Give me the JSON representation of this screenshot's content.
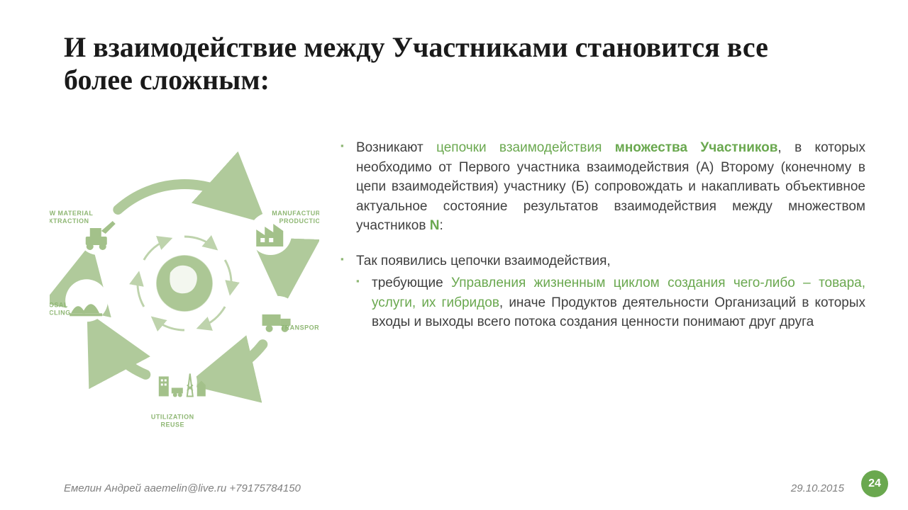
{
  "title": "И взаимодействие между Участниками становится все более сложным:",
  "colors": {
    "accent": "#6aa84f",
    "diagram": "#a3c18a",
    "diagram_dark": "#8fb774",
    "text": "#3f3f3f",
    "muted": "#808080",
    "badge_bg": "#6aa84f",
    "badge_fg": "#ffffff"
  },
  "diagram": {
    "type": "cycle",
    "nodes": [
      {
        "id": "raw",
        "label": "RAW MATERIAL EXTRACTION",
        "angle": -150
      },
      {
        "id": "manuf",
        "label": "MANUFACTURING PRODUCTION",
        "angle": -30
      },
      {
        "id": "trans",
        "label": "TRANSPORTATION",
        "angle": 20
      },
      {
        "id": "util",
        "label": "UTILIZATION REUSE",
        "angle": 95
      },
      {
        "id": "disp",
        "label": "DISPOSAL RECYCLING",
        "angle": 170
      }
    ],
    "label_fontsize": 9,
    "icon_color": "#a3c18a",
    "arrow_color": "#a3c18a"
  },
  "bullets": [
    {
      "runs": [
        {
          "t": "Возникают "
        },
        {
          "t": "цепочки взаимодействия ",
          "cls": "hl"
        },
        {
          "t": "множества Участников",
          "cls": "hl-b"
        },
        {
          "t": ", в которых необходимо от Первого участника взаимодействия (А) Второму (конечному в цепи взаимодействия) участнику (Б) сопровождать и накапливать объективное актуальное состояние результатов взаимодействия между множеством участников "
        },
        {
          "t": "N",
          "cls": "hl-b"
        },
        {
          "t": ":"
        }
      ]
    },
    {
      "runs": [
        {
          "t": "Так появились цепочки взаимодействия,"
        }
      ],
      "sub": [
        {
          "runs": [
            {
              "t": "требующие "
            },
            {
              "t": "Управления жизненным циклом создания чего-либо – товара, услуги, их гибридов",
              "cls": "hl"
            },
            {
              "t": ", иначе Продуктов деятельности Организаций в которых входы и выходы всего потока создания ценности понимают друг друга"
            }
          ]
        }
      ]
    }
  ],
  "footer": {
    "author": "Емелин Андрей aaemelin@live.ru +79175784150",
    "date": "29.10.2015",
    "page": "24"
  }
}
